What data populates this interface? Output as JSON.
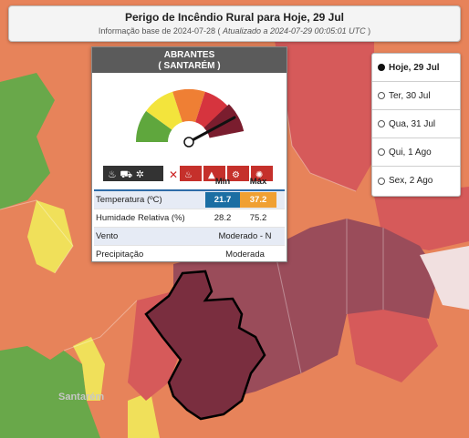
{
  "header": {
    "title": "Perigo de Incêndio Rural para Hoje, 29 Jul",
    "info_prefix": "Informação base de 2024-07-28 (",
    "info_updated": "Atualizado a 2024-07-29 00:05:01 UTC",
    "info_suffix": ")"
  },
  "popup": {
    "municipality": "ABRANTES",
    "district": "( SANTARÉM )",
    "risk_level_index": 5,
    "risk_levels": [
      "reduzido",
      "moderado",
      "elevado",
      "muito-elevado",
      "maximo"
    ],
    "colors": {
      "green": "#5fa73d",
      "yellow": "#f3e43c",
      "orange": "#ef7f34",
      "red": "#d6343e",
      "maroon": "#7a1d2e"
    },
    "table": {
      "col_min": "Min",
      "col_max": "Máx",
      "temp_label": "Temperatura (ºC)",
      "temp_min": "21.7",
      "temp_max": "37.2",
      "hum_label": "Humidade Relativa (%)",
      "hum_min": "28.2",
      "hum_max": "75.2",
      "wind_label": "Vento",
      "wind_value": "Moderado - N",
      "precip_label": "Precipitação",
      "precip_value": "Moderada"
    }
  },
  "days": [
    {
      "label": "Hoje, 29 Jul",
      "selected": true
    },
    {
      "label": "Ter, 30 Jul",
      "selected": false
    },
    {
      "label": "Qua, 31 Jul",
      "selected": false
    },
    {
      "label": "Qui, 1 Ago",
      "selected": false
    },
    {
      "label": "Sex, 2 Ago",
      "selected": false
    }
  ],
  "map": {
    "place_label": "Santarém"
  }
}
